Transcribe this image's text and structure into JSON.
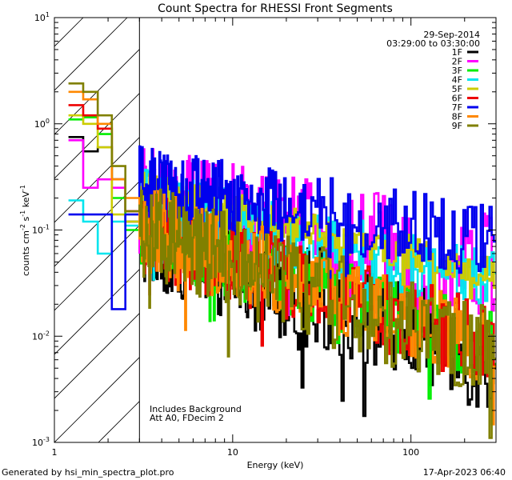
{
  "chart_data": {
    "type": "line",
    "title": "Count Spectra for RHESSI Front Segments",
    "xlabel": "Energy (keV)",
    "ylabel_parts": [
      "counts cm",
      "-2",
      " s",
      "-1",
      " keV",
      "-1"
    ],
    "xscale": "log",
    "yscale": "log",
    "xlim": [
      1,
      300
    ],
    "ylim": [
      0.001,
      10
    ],
    "x_ticks": [
      {
        "value": 1,
        "label": "1"
      },
      {
        "value": 10,
        "label": "10"
      },
      {
        "value": 100,
        "label": "100"
      }
    ],
    "y_ticks": [
      {
        "value": 0.001,
        "base": "10",
        "exp": "-3"
      },
      {
        "value": 0.01,
        "base": "10",
        "exp": "-2"
      },
      {
        "value": 0.1,
        "base": "10",
        "exp": "-1"
      },
      {
        "value": 1,
        "base": "10",
        "exp": "0"
      },
      {
        "value": 10,
        "base": "10",
        "exp": "1"
      }
    ],
    "hatched_region_x": [
      1,
      3
    ],
    "date": "29-Sep-2014",
    "time_range": "03:29:00 to 03:30:00",
    "annotation_lines": [
      "Includes Background",
      "Att A0, FDecim 2"
    ],
    "series": [
      {
        "name": "1F",
        "color": "#000000"
      },
      {
        "name": "2F",
        "color": "#ff00ff"
      },
      {
        "name": "3F",
        "color": "#00ee00"
      },
      {
        "name": "4F",
        "color": "#00e5ee"
      },
      {
        "name": "5F",
        "color": "#cccc00"
      },
      {
        "name": "6F",
        "color": "#ee0000"
      },
      {
        "name": "7F",
        "color": "#0000ee"
      },
      {
        "name": "8F",
        "color": "#ff8800"
      },
      {
        "name": "9F",
        "color": "#808000"
      }
    ]
  },
  "footer_left": "Generated by hsi_min_spectra_plot.pro",
  "footer_right": "17-Apr-2023 06:40"
}
